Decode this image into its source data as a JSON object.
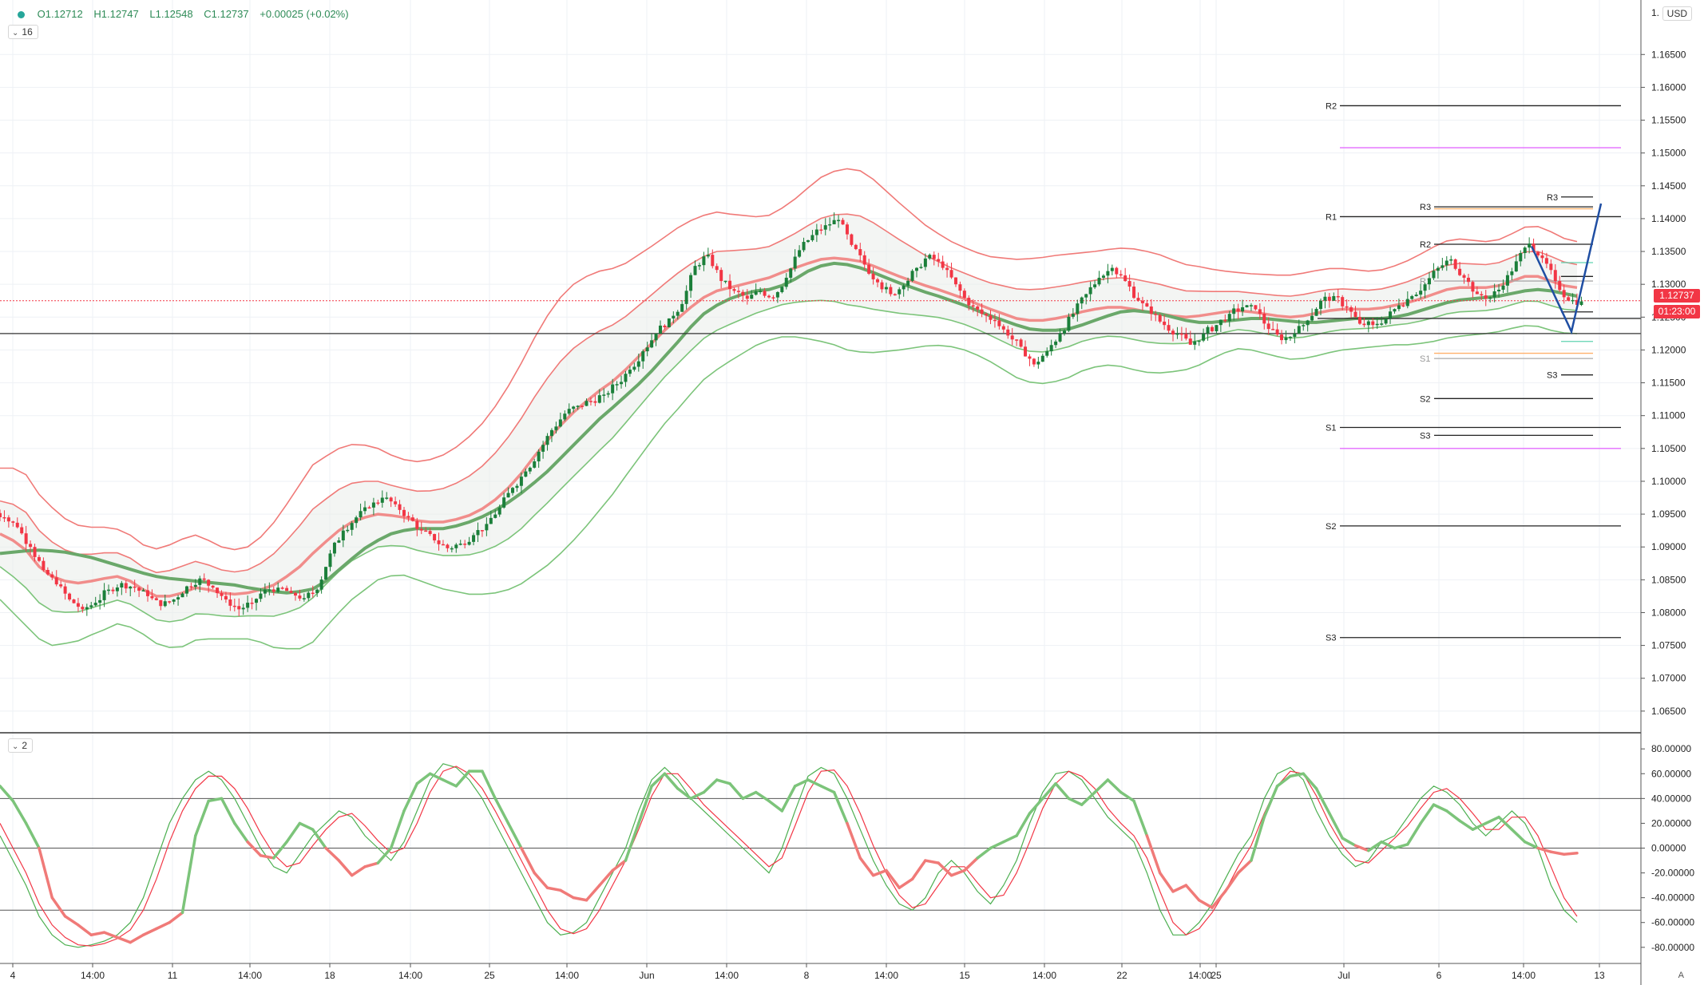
{
  "legend": {
    "open": "O1.12712",
    "high": "H1.12747",
    "low": "L1.12548",
    "close": "C1.12737",
    "change": "+0.00025 (+0.02%)"
  },
  "pane_buttons": {
    "main": "16",
    "oscillator": "2"
  },
  "currency_button": "USD",
  "corner_label": "A",
  "price_tags": {
    "last_price": "1.12737",
    "countdown": "01:23:00"
  },
  "colors": {
    "up": "#26a69a",
    "candle_up": "#1b7f3a",
    "candle_down": "#f23645",
    "band_upper": "#f07a78",
    "band_lower": "#7cc47a",
    "basis": "#f07a78",
    "ma": "#6aa86a",
    "projection": "#1f4ea3",
    "magenta": "#e36bff",
    "orange": "#ffb06b",
    "teal": "#5fd3b0"
  },
  "chart_data": [
    {
      "type": "candlestick",
      "axis_ticks": {
        "y_top_label": "1.",
        "y": [
          1.165,
          1.16,
          1.155,
          1.15,
          1.145,
          1.14,
          1.135,
          1.13,
          1.125,
          1.12,
          1.115,
          1.11,
          1.105,
          1.1,
          1.095,
          1.09,
          1.085,
          1.08,
          1.075,
          1.07,
          1.065
        ],
        "y_labels": [
          "1.16500",
          "1.16000",
          "1.15500",
          "1.15000",
          "1.14500",
          "1.14000",
          "1.13500",
          "1.13000",
          "1.12500",
          "1.12000",
          "1.11500",
          "1.11000",
          "1.10500",
          "1.10000",
          "1.09500",
          "1.09000",
          "1.08500",
          "1.08000",
          "1.07500",
          "1.07000",
          "1.06500"
        ],
        "x_labels": [
          "4",
          "14:00",
          "11",
          "14:00",
          "18",
          "14:00",
          "25",
          "14:00",
          "Jun",
          "14:00",
          "8",
          "14:00",
          "15",
          "14:00",
          "22",
          "14:00",
          "25",
          "Jul",
          "6",
          "14:00",
          "13"
        ]
      },
      "ylim": [
        1.0617,
        1.1733
      ],
      "grid": true,
      "close_series": [
        1.0945,
        1.093,
        1.09,
        1.0865,
        1.0843,
        1.082,
        1.0805,
        1.0815,
        1.0835,
        1.0845,
        1.0838,
        1.0825,
        1.081,
        1.082,
        1.084,
        1.0852,
        1.0838,
        1.082,
        1.0805,
        1.0815,
        1.0835,
        1.0838,
        1.083,
        1.0822,
        1.0835,
        1.089,
        1.0925,
        1.0945,
        1.096,
        1.0975,
        1.0965,
        1.0945,
        1.0925,
        1.091,
        1.0898,
        1.0905,
        1.0918,
        1.0935,
        1.096,
        1.099,
        1.1015,
        1.1045,
        1.1078,
        1.1103,
        1.1115,
        1.1122,
        1.1132,
        1.1148,
        1.117,
        1.1198,
        1.1225,
        1.1248,
        1.127,
        1.1328,
        1.1345,
        1.1305,
        1.129,
        1.1278,
        1.129,
        1.128,
        1.131,
        1.1352,
        1.1375,
        1.139,
        1.1398,
        1.136,
        1.133,
        1.1303,
        1.1285,
        1.1298,
        1.1325,
        1.1345,
        1.1325,
        1.13,
        1.1268,
        1.1255,
        1.1245,
        1.1222,
        1.1205,
        1.1178,
        1.1198,
        1.1225,
        1.1255,
        1.1285,
        1.131,
        1.1325,
        1.1305,
        1.1275,
        1.1255,
        1.1238,
        1.1225,
        1.1208,
        1.1225,
        1.1238,
        1.1255,
        1.1265,
        1.1262,
        1.1232,
        1.1215,
        1.1225,
        1.1245,
        1.1275,
        1.1282,
        1.1265,
        1.124,
        1.1238,
        1.1248,
        1.1268,
        1.1282,
        1.13,
        1.1325,
        1.1338,
        1.131,
        1.1285,
        1.128,
        1.1298,
        1.1335,
        1.1362,
        1.134,
        1.1305,
        1.1275,
        1.1274
      ],
      "bands": {
        "basis": [
          1.092,
          1.091,
          1.0895,
          1.087,
          1.0855,
          1.0848,
          1.0845,
          1.0848,
          1.0852,
          1.0855,
          1.0848,
          1.0835,
          1.0825,
          1.0825,
          1.083,
          1.0838,
          1.0835,
          1.083,
          1.0828,
          1.083,
          1.0835,
          1.0842,
          1.0855,
          1.087,
          1.089,
          1.0908,
          1.0925,
          1.0938,
          1.0945,
          1.095,
          1.0948,
          1.0945,
          1.094,
          1.0938,
          1.0938,
          1.0942,
          1.0948,
          1.0958,
          1.0972,
          1.099,
          1.1012,
          1.1038,
          1.1062,
          1.1085,
          1.1105,
          1.1122,
          1.1138,
          1.1152,
          1.117,
          1.119,
          1.121,
          1.123,
          1.1248,
          1.1265,
          1.128,
          1.129,
          1.1295,
          1.13,
          1.1305,
          1.131,
          1.1318,
          1.1325,
          1.1332,
          1.1338,
          1.134,
          1.1338,
          1.1335,
          1.1328,
          1.132,
          1.1312,
          1.1305,
          1.1298,
          1.1292,
          1.1285,
          1.1278,
          1.127,
          1.1262,
          1.1255,
          1.1248,
          1.1245,
          1.1245,
          1.1248,
          1.1252,
          1.1258,
          1.1262,
          1.1265,
          1.1265,
          1.1262,
          1.1258,
          1.1255,
          1.1252,
          1.125,
          1.1252,
          1.1255,
          1.1258,
          1.126,
          1.1258,
          1.1255,
          1.1252,
          1.125,
          1.1252,
          1.1256,
          1.126,
          1.1262,
          1.1262,
          1.1262,
          1.1264,
          1.1268,
          1.1272,
          1.1278,
          1.1285,
          1.1292,
          1.1295,
          1.1295,
          1.1295,
          1.1298,
          1.1305,
          1.1312,
          1.1312,
          1.1305,
          1.1298,
          1.1295
        ],
        "width": [
          0.01,
          0.011,
          0.0115,
          0.011,
          0.0105,
          0.0095,
          0.0088,
          0.0082,
          0.0078,
          0.0072,
          0.007,
          0.0068,
          0.0072,
          0.0078,
          0.0082,
          0.008,
          0.0075,
          0.007,
          0.0068,
          0.007,
          0.008,
          0.0095,
          0.011,
          0.0125,
          0.0135,
          0.013,
          0.0125,
          0.0118,
          0.011,
          0.01,
          0.0092,
          0.0088,
          0.009,
          0.0095,
          0.0102,
          0.011,
          0.012,
          0.013,
          0.0142,
          0.0155,
          0.0168,
          0.018,
          0.019,
          0.0195,
          0.0195,
          0.019,
          0.0182,
          0.0172,
          0.0162,
          0.0155,
          0.0148,
          0.0142,
          0.0138,
          0.0132,
          0.0125,
          0.012,
          0.0112,
          0.0105,
          0.0098,
          0.0095,
          0.0098,
          0.0105,
          0.0115,
          0.0125,
          0.0132,
          0.0138,
          0.0138,
          0.0132,
          0.0122,
          0.0112,
          0.0102,
          0.0092,
          0.0085,
          0.008,
          0.0078,
          0.0078,
          0.008,
          0.0085,
          0.009,
          0.0094,
          0.0096,
          0.0096,
          0.0094,
          0.009,
          0.0088,
          0.0088,
          0.009,
          0.0092,
          0.0092,
          0.009,
          0.0085,
          0.008,
          0.0075,
          0.0068,
          0.0062,
          0.0058,
          0.0058,
          0.006,
          0.0062,
          0.0064,
          0.0065,
          0.0065,
          0.0064,
          0.0062,
          0.006,
          0.0058,
          0.0058,
          0.006,
          0.0064,
          0.0068,
          0.0072,
          0.0074,
          0.0074,
          0.0072,
          0.007,
          0.007,
          0.0072,
          0.0075,
          0.0076,
          0.0075,
          0.0072,
          0.007
        ],
        "ma": [
          1.089,
          1.0892,
          1.0894,
          1.0895,
          1.0894,
          1.0892,
          1.0888,
          1.0884,
          1.0878,
          1.0872,
          1.0866,
          1.086,
          1.0855,
          1.0852,
          1.085,
          1.0848,
          1.0846,
          1.0844,
          1.0842,
          1.0838,
          1.0835,
          1.0832,
          1.083,
          1.0832,
          1.0836,
          1.0848,
          1.0865,
          1.0882,
          1.0898,
          1.091,
          1.092,
          1.0925,
          1.0928,
          1.0928,
          1.0928,
          1.0932,
          1.0938,
          1.0946,
          1.0956,
          1.0968,
          1.0982,
          1.0998,
          1.1015,
          1.1035,
          1.1055,
          1.1075,
          1.1095,
          1.1112,
          1.113,
          1.1148,
          1.1168,
          1.119,
          1.1212,
          1.1235,
          1.1255,
          1.1268,
          1.1278,
          1.1285,
          1.129,
          1.1292,
          1.1298,
          1.1308,
          1.132,
          1.1328,
          1.1332,
          1.133,
          1.1325,
          1.1318,
          1.131,
          1.1302,
          1.1295,
          1.1288,
          1.1282,
          1.1275,
          1.1268,
          1.126,
          1.1252,
          1.1245,
          1.1238,
          1.1232,
          1.123,
          1.123,
          1.1232,
          1.1238,
          1.1245,
          1.1252,
          1.1258,
          1.126,
          1.1258,
          1.1255,
          1.125,
          1.1245,
          1.1242,
          1.1242,
          1.1244,
          1.1246,
          1.1248,
          1.1248,
          1.1246,
          1.1244,
          1.1242,
          1.1242,
          1.1244,
          1.1246,
          1.1248,
          1.1248,
          1.1248,
          1.125,
          1.1254,
          1.126,
          1.1266,
          1.1272,
          1.1276,
          1.1278,
          1.128,
          1.1282,
          1.1286,
          1.129,
          1.1292,
          1.129,
          1.1286,
          1.1282
        ],
        "x_range": [
          0,
          1975
        ]
      },
      "horizontal_lines": [
        {
          "price": 1.1275,
          "style": "dotted",
          "color": "#f23645"
        },
        {
          "price": 1.1225,
          "style": "solid",
          "color": "#333333"
        },
        {
          "price": 1.1248,
          "style": "solid",
          "color": "#333333",
          "x_start": 1650
        }
      ],
      "pivots_long": [
        {
          "label": "R2",
          "price": 1.1572
        },
        {
          "label": "",
          "price": 1.1508,
          "color": "#e36bff"
        },
        {
          "label": "R1",
          "price": 1.1403
        },
        {
          "label": "S1",
          "price": 1.1082
        },
        {
          "label": "",
          "price": 1.105,
          "color": "#e36bff"
        },
        {
          "label": "S2",
          "price": 1.0932
        },
        {
          "label": "S3",
          "price": 1.0762
        }
      ],
      "pivots_mid": [
        {
          "label": "R3",
          "price": 1.1418
        },
        {
          "label": "",
          "price": 1.1415,
          "color": "#ffb06b"
        },
        {
          "label": "R2",
          "price": 1.1361
        },
        {
          "label": "R1",
          "price": 1.1305,
          "faded": true
        },
        {
          "label": "S1",
          "price": 1.1187,
          "faded": true
        },
        {
          "label": "S2",
          "price": 1.1126
        },
        {
          "label": "S3",
          "price": 1.107
        },
        {
          "label": "",
          "price": 1.1195,
          "color": "#ffb06b"
        }
      ],
      "pivots_short": [
        {
          "label": "R3",
          "price": 1.1433
        },
        {
          "label": "",
          "price": 1.1312
        },
        {
          "label": "",
          "price": 1.1333,
          "color": "#5fd3b0"
        },
        {
          "label": "",
          "price": 1.1213,
          "color": "#5fd3b0"
        },
        {
          "label": "",
          "price": 1.1258
        },
        {
          "label": "S3",
          "price": 1.1162
        }
      ],
      "projection": [
        {
          "x_index": 1918,
          "price": 1.1358
        },
        {
          "x_index": 1968,
          "price": 1.1228
        },
        {
          "x_index": 2005,
          "price": 1.1423
        }
      ]
    },
    {
      "type": "line",
      "axis_ticks": {
        "y": [
          80,
          60,
          40,
          20,
          0,
          -20,
          -40,
          -60,
          -80
        ],
        "y_labels": [
          "80.00000",
          "60.00000",
          "40.00000",
          "20.00000",
          "0.00000",
          "-20.00000",
          "-40.00000",
          "-60.00000",
          "-80.00000"
        ]
      },
      "ylim": [
        -93,
        93
      ],
      "levels": [
        40,
        0,
        -50
      ],
      "series": [
        {
          "values": [
            50,
            38,
            20,
            0,
            -40,
            -55,
            -62,
            -70,
            -68,
            -72,
            -76,
            -70,
            -65,
            -60,
            -52,
            10,
            38,
            40,
            20,
            5,
            -6,
            -8,
            5,
            20,
            15,
            0,
            -10,
            -22,
            -15,
            -12,
            0,
            30,
            52,
            60,
            55,
            50,
            62,
            62,
            40,
            20,
            0,
            -20,
            -32,
            -34,
            -40,
            -42,
            -30,
            -18,
            -10,
            20,
            50,
            60,
            48,
            40,
            45,
            55,
            52,
            40,
            45,
            38,
            30,
            50,
            55,
            50,
            45,
            20,
            -8,
            -22,
            -18,
            -32,
            -25,
            -10,
            -12,
            -22,
            -18,
            -8,
            0,
            5,
            10,
            28,
            40,
            52,
            40,
            35,
            45,
            55,
            45,
            38,
            10,
            -20,
            -35,
            -30,
            -42,
            -48,
            -35,
            -20,
            -10,
            25,
            50,
            58,
            60,
            48,
            28,
            8,
            2,
            -2,
            5,
            0,
            3,
            20,
            35,
            30,
            22,
            15,
            20,
            25,
            15,
            5,
            0,
            -3,
            -5,
            -4
          ]
        },
        {
          "values": [
            10,
            -10,
            -30,
            -55,
            -70,
            -78,
            -80,
            -78,
            -75,
            -70,
            -60,
            -40,
            -10,
            20,
            40,
            55,
            62,
            55,
            40,
            20,
            0,
            -15,
            -20,
            -5,
            10,
            20,
            30,
            25,
            10,
            0,
            -10,
            5,
            30,
            55,
            68,
            65,
            55,
            40,
            20,
            0,
            -20,
            -40,
            -60,
            -70,
            -68,
            -60,
            -40,
            -20,
            0,
            30,
            55,
            65,
            55,
            40,
            30,
            20,
            10,
            0,
            -10,
            -20,
            0,
            30,
            58,
            65,
            60,
            40,
            15,
            -10,
            -30,
            -45,
            -50,
            -40,
            -20,
            -10,
            -20,
            -35,
            -45,
            -30,
            -10,
            20,
            45,
            60,
            62,
            55,
            40,
            25,
            15,
            5,
            -20,
            -50,
            -70,
            -70,
            -60,
            -45,
            -25,
            -5,
            10,
            40,
            60,
            65,
            55,
            30,
            10,
            -5,
            -15,
            -10,
            5,
            10,
            25,
            40,
            50,
            45,
            35,
            20,
            10,
            20,
            30,
            20,
            0,
            -30,
            -50,
            -60
          ]
        },
        {
          "values": [
            20,
            0,
            -20,
            -45,
            -62,
            -72,
            -78,
            -79,
            -77,
            -73,
            -66,
            -50,
            -25,
            5,
            30,
            48,
            58,
            58,
            48,
            32,
            12,
            -5,
            -15,
            -12,
            2,
            15,
            25,
            28,
            18,
            6,
            -4,
            0,
            20,
            45,
            62,
            66,
            60,
            48,
            30,
            10,
            -10,
            -30,
            -50,
            -65,
            -69,
            -65,
            -50,
            -30,
            -10,
            15,
            42,
            60,
            60,
            48,
            35,
            25,
            15,
            5,
            -5,
            -15,
            -8,
            18,
            45,
            62,
            63,
            50,
            28,
            2,
            -20,
            -38,
            -48,
            -45,
            -30,
            -15,
            -15,
            -28,
            -40,
            -38,
            -20,
            5,
            32,
            52,
            62,
            58,
            48,
            32,
            20,
            10,
            -8,
            -35,
            -60,
            -70,
            -65,
            -52,
            -35,
            -15,
            2,
            28,
            50,
            62,
            60,
            42,
            20,
            2,
            -10,
            -12,
            -2,
            8,
            18,
            32,
            45,
            48,
            40,
            28,
            15,
            15,
            25,
            25,
            10,
            -15,
            -40,
            -55
          ]
        }
      ]
    }
  ]
}
